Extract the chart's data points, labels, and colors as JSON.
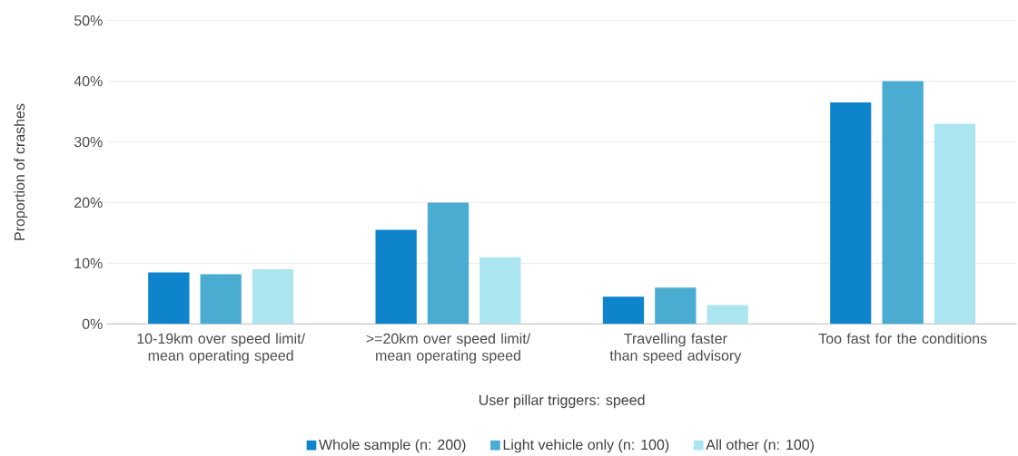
{
  "chart_data": {
    "type": "bar",
    "xlabel": "User pillar triggers: speed",
    "ylabel": "Proportion of crashes",
    "categories": [
      "10-19km over speed limit/ mean operating speed",
      ">=20km over speed limit/ mean operating speed",
      "Travelling faster than speed advisory",
      "Too fast for the conditions"
    ],
    "series": [
      {
        "name": "Whole sample (n: 200)",
        "color": "#0e84cc",
        "values": [
          8.5,
          15.5,
          4.5,
          36.5
        ]
      },
      {
        "name": "Light vehicle only (n: 100)",
        "color": "#4bacd1",
        "values": [
          8.2,
          20,
          6,
          40
        ]
      },
      {
        "name": "All other (n: 100)",
        "color": "#abe6f0",
        "values": [
          9,
          11,
          3.1,
          33
        ]
      }
    ],
    "ylim": [
      0,
      50
    ],
    "yticks": [
      {
        "value": 0,
        "label": "0%"
      },
      {
        "value": 10,
        "label": "10%"
      },
      {
        "value": 20,
        "label": "20%"
      },
      {
        "value": 30,
        "label": "30%"
      },
      {
        "value": 40,
        "label": "40%"
      },
      {
        "value": 50,
        "label": "50%"
      }
    ],
    "grid": "y",
    "legend": "bottom"
  }
}
